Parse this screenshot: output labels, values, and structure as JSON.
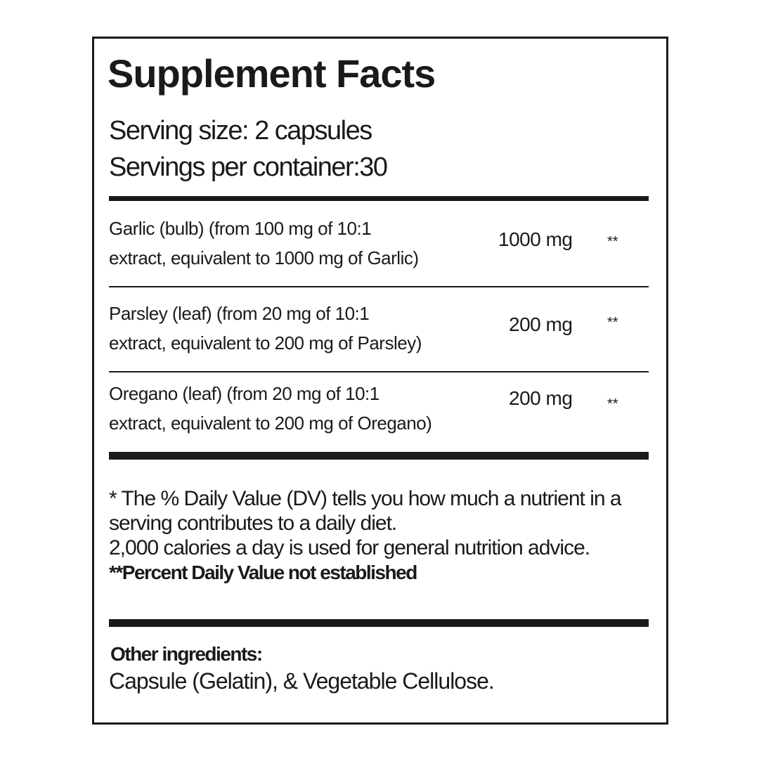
{
  "title": "Supplement Facts",
  "serving_size": "Serving size: 2 capsules",
  "servings_per_container": "Servings per container:30",
  "ingredients": [
    {
      "line1": "Garlic   (bulb) (from 100 mg of 10:1",
      "line2": "extract, equivalent to 1000 mg of Garlic)",
      "amount": "1000 mg",
      "dv": "**"
    },
    {
      "line1": "Parsley   (leaf) (from 20 mg of 10:1",
      "line2": "extract, equivalent to 200 mg of Parsley)",
      "amount": "200 mg",
      "dv": "**"
    },
    {
      "line1": "Oregano    (leaf) (from 20 mg of 10:1",
      "line2": "extract, equivalent to 200 mg of Oregano)",
      "amount": "200 mg",
      "dv": "**"
    }
  ],
  "footnote": {
    "line1": "* The % Daily Value (DV) tells you how much a nutrient in a",
    "line2": "serving contributes to a daily diet.",
    "line3": "2,000 calories a day is used for general nutrition advice.",
    "bold": "**Percent Daily Value not established"
  },
  "other": {
    "label": "Other  ingredients:",
    "text": "Capsule (Gelatin), & Vegetable Cellulose."
  }
}
